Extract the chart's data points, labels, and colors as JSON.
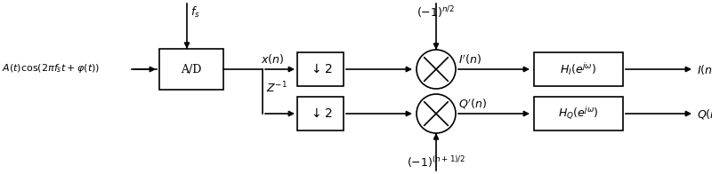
{
  "bg_color": "#ffffff",
  "fig_width": 8.0,
  "fig_height": 1.96,
  "dpi": 100,
  "input_label": "$A(t)\\cos(2\\pi f_s t + \\varphi(t))$",
  "fs_label": "$f_s$",
  "ad_label": "A/D",
  "xn_label": "$x(n)$",
  "z1_label": "$Z^{-1}$",
  "down2_top_label": "$\\downarrow 2$",
  "down2_bot_label": "$\\downarrow 2$",
  "mult_top_top_label": "$(-1)^{n/2}$",
  "mult_top_label": "$I'(n)$",
  "mult_bot_bot_label": "$(-1)^{(n+1)/2}$",
  "mult_bot_label": "$Q'(n)$",
  "hI_label": "$H_I(e^{j\\omega})$",
  "hQ_label": "$H_Q(e^{j\\omega})$",
  "out_I_label": "$I(n)$",
  "out_Q_label": "$Q(n)$",
  "line_color": "#000000",
  "lw": 1.2
}
